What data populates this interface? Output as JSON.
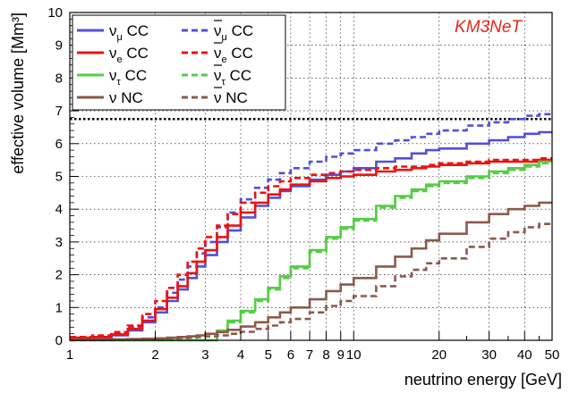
{
  "chart_data": {
    "type": "line",
    "title": "",
    "xlabel": "neutrino energy [GeV]",
    "ylabel": "effective volume [Mm³]",
    "xscale": "log",
    "xlim": [
      1,
      50
    ],
    "ylim": [
      0,
      10
    ],
    "grid": true,
    "legend_position": "top-left",
    "watermark": "KM3NeT",
    "watermark_color": "#e8281e",
    "x_ticks": [
      1,
      2,
      3,
      4,
      5,
      6,
      7,
      8,
      9,
      10,
      20,
      30,
      40,
      50
    ],
    "x_tick_labels": [
      "1",
      "2",
      "3",
      "4",
      "5",
      "6",
      "7",
      "8",
      "9",
      "10",
      "20",
      "30",
      "40",
      "50"
    ],
    "y_ticks": [
      0,
      1,
      2,
      3,
      4,
      5,
      6,
      7,
      8,
      9,
      10
    ],
    "y_tick_labels": [
      "0",
      "1",
      "2",
      "3",
      "4",
      "5",
      "6",
      "7",
      "8",
      "9",
      "10"
    ],
    "reference_line": {
      "y": 6.75,
      "style": "dotted",
      "color": "#000000"
    },
    "x": [
      1.0,
      1.2,
      1.4,
      1.6,
      1.8,
      2.0,
      2.2,
      2.4,
      2.6,
      2.8,
      3.0,
      3.3,
      3.6,
      4.0,
      4.5,
      5.0,
      5.5,
      6.0,
      7.0,
      8.0,
      9.0,
      10.0,
      12.0,
      14.0,
      16.0,
      18.0,
      20.0,
      25.0,
      30.0,
      35.0,
      40.0,
      45.0,
      50.0
    ],
    "series": [
      {
        "name": "ν_μ CC",
        "color": "#5050d8",
        "dash": "solid",
        "values": [
          0.05,
          0.08,
          0.15,
          0.3,
          0.55,
          0.85,
          1.2,
          1.55,
          1.9,
          2.25,
          2.6,
          3.0,
          3.35,
          3.75,
          4.1,
          4.35,
          4.55,
          4.7,
          4.9,
          5.05,
          5.15,
          5.25,
          5.45,
          5.55,
          5.7,
          5.8,
          5.85,
          6.0,
          6.1,
          6.2,
          6.3,
          6.35,
          6.45
        ]
      },
      {
        "name": "ν̄_μ CC",
        "color": "#5050d8",
        "dash": "dashed",
        "values": [
          0.07,
          0.1,
          0.2,
          0.4,
          0.7,
          1.0,
          1.45,
          1.85,
          2.25,
          2.65,
          3.0,
          3.45,
          3.9,
          4.3,
          4.65,
          4.9,
          5.1,
          5.25,
          5.45,
          5.6,
          5.7,
          5.8,
          6.0,
          6.1,
          6.2,
          6.3,
          6.4,
          6.55,
          6.65,
          6.75,
          6.85,
          6.9,
          6.9
        ]
      },
      {
        "name": "ν_e CC",
        "color": "#ee1111",
        "dash": "solid",
        "values": [
          0.08,
          0.1,
          0.18,
          0.35,
          0.6,
          0.95,
          1.3,
          1.65,
          2.05,
          2.4,
          2.75,
          3.15,
          3.5,
          3.9,
          4.2,
          4.45,
          4.6,
          4.75,
          4.85,
          4.95,
          5.0,
          5.05,
          5.15,
          5.2,
          5.25,
          5.3,
          5.35,
          5.4,
          5.45,
          5.45,
          5.45,
          5.5,
          5.55
        ]
      },
      {
        "name": "ν̄_e CC",
        "color": "#ee1111",
        "dash": "dashed",
        "values": [
          0.1,
          0.15,
          0.25,
          0.45,
          0.8,
          1.2,
          1.6,
          2.0,
          2.4,
          2.8,
          3.15,
          3.5,
          3.85,
          4.2,
          4.5,
          4.7,
          4.85,
          4.95,
          5.05,
          5.1,
          5.15,
          5.2,
          5.25,
          5.3,
          5.3,
          5.35,
          5.4,
          5.45,
          5.5,
          5.5,
          5.5,
          5.55,
          5.6
        ]
      },
      {
        "name": "ν_τ CC",
        "color": "#55cc44",
        "dash": "solid",
        "values": [
          0,
          0,
          0,
          0,
          0,
          0,
          0,
          0,
          0,
          0,
          0,
          0.3,
          0.6,
          0.9,
          1.25,
          1.6,
          1.95,
          2.25,
          2.75,
          3.15,
          3.45,
          3.7,
          4.1,
          4.4,
          4.6,
          4.75,
          4.85,
          5.0,
          5.15,
          5.25,
          5.35,
          5.45,
          5.5
        ]
      },
      {
        "name": "ν̄_τ CC",
        "color": "#55cc44",
        "dash": "dashed",
        "values": [
          0,
          0,
          0,
          0,
          0,
          0,
          0,
          0,
          0,
          0,
          0,
          0.25,
          0.55,
          0.85,
          1.2,
          1.55,
          1.9,
          2.2,
          2.7,
          3.1,
          3.4,
          3.65,
          4.05,
          4.35,
          4.55,
          4.7,
          4.8,
          4.95,
          5.1,
          5.2,
          5.3,
          5.4,
          5.45
        ]
      },
      {
        "name": "ν NC",
        "color": "#8b5a4a",
        "dash": "solid",
        "values": [
          0.02,
          0.02,
          0.03,
          0.04,
          0.05,
          0.06,
          0.08,
          0.1,
          0.12,
          0.15,
          0.2,
          0.25,
          0.32,
          0.42,
          0.55,
          0.7,
          0.85,
          1.0,
          1.25,
          1.5,
          1.7,
          1.9,
          2.25,
          2.55,
          2.8,
          3.05,
          3.25,
          3.6,
          3.85,
          4.0,
          4.1,
          4.2,
          4.25
        ]
      },
      {
        "name": "ν̄ NC",
        "color": "#8b5a4a",
        "dash": "dashed",
        "values": [
          0.01,
          0.01,
          0.02,
          0.03,
          0.04,
          0.05,
          0.06,
          0.07,
          0.08,
          0.1,
          0.12,
          0.15,
          0.2,
          0.26,
          0.35,
          0.45,
          0.55,
          0.65,
          0.85,
          1.05,
          1.2,
          1.35,
          1.65,
          1.95,
          2.15,
          2.35,
          2.5,
          2.85,
          3.1,
          3.3,
          3.45,
          3.55,
          3.65
        ]
      }
    ],
    "legend": [
      {
        "base": "ν",
        "sub": "μ",
        "suffix": " CC",
        "bar": false,
        "series": 0
      },
      {
        "base": "ν",
        "sub": "μ",
        "suffix": " CC",
        "bar": true,
        "series": 1
      },
      {
        "base": "ν",
        "sub": "e",
        "suffix": " CC",
        "bar": false,
        "series": 2
      },
      {
        "base": "ν",
        "sub": "e",
        "suffix": " CC",
        "bar": true,
        "series": 3
      },
      {
        "base": "ν",
        "sub": "τ",
        "suffix": " CC",
        "bar": false,
        "series": 4
      },
      {
        "base": "ν",
        "sub": "τ",
        "suffix": " CC",
        "bar": true,
        "series": 5
      },
      {
        "base": "ν",
        "sub": "",
        "suffix": " NC",
        "bar": false,
        "series": 6
      },
      {
        "base": "ν",
        "sub": "",
        "suffix": " NC",
        "bar": true,
        "series": 7
      }
    ]
  }
}
